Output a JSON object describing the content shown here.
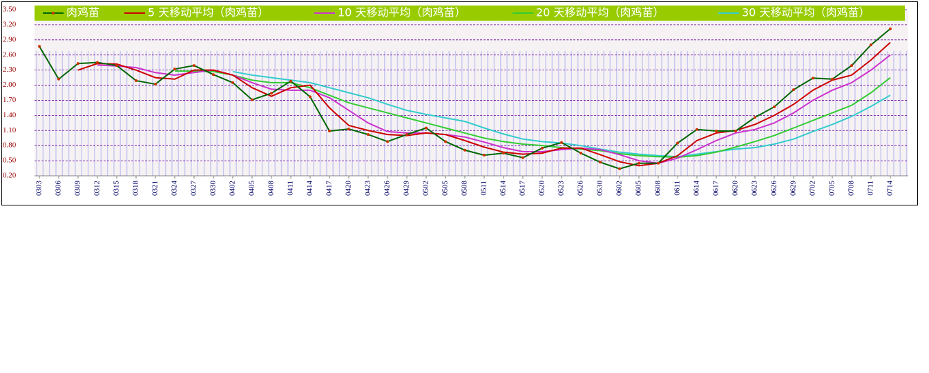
{
  "chart_data": {
    "type": "line",
    "categories": [
      "0303",
      "0306",
      "0309",
      "0312",
      "0315",
      "0318",
      "0321",
      "0324",
      "0327",
      "0330",
      "0402",
      "0405",
      "0408",
      "0411",
      "0414",
      "0417",
      "0420",
      "0423",
      "0426",
      "0429",
      "0502",
      "0505",
      "0508",
      "0511",
      "0514",
      "0517",
      "0520",
      "0523",
      "0526",
      "0530",
      "0602",
      "0605",
      "0608",
      "0611",
      "0614",
      "0617",
      "0620",
      "0623",
      "0626",
      "0629",
      "0702",
      "0705",
      "0708",
      "0711",
      "0714"
    ],
    "series": [
      {
        "name": "肉鸡苗",
        "color": "#006600",
        "marker_color": "#cc3300",
        "values": [
          2.77,
          2.12,
          2.43,
          2.45,
          2.39,
          2.09,
          2.02,
          2.32,
          2.39,
          2.21,
          2.05,
          1.71,
          1.84,
          2.08,
          1.77,
          1.09,
          1.13,
          1.02,
          0.88,
          1.02,
          1.15,
          0.88,
          0.71,
          0.61,
          0.65,
          0.56,
          0.75,
          0.86,
          0.65,
          0.47,
          0.34,
          0.45,
          0.45,
          0.85,
          1.12,
          1.09,
          1.09,
          1.36,
          1.57,
          1.91,
          2.14,
          2.12,
          2.39,
          2.8,
          3.12
        ]
      },
      {
        "name": "5 天移动平均（肉鸡苗）",
        "color": "#cc0000",
        "values": [
          null,
          null,
          2.3,
          2.43,
          2.42,
          2.3,
          2.15,
          2.12,
          2.3,
          2.3,
          2.2,
          1.95,
          1.78,
          1.95,
          2.0,
          1.55,
          1.2,
          1.1,
          1.02,
          1.0,
          1.05,
          1.02,
          0.9,
          0.77,
          0.67,
          0.63,
          0.65,
          0.75,
          0.75,
          0.62,
          0.48,
          0.4,
          0.45,
          0.6,
          0.9,
          1.05,
          1.1,
          1.22,
          1.4,
          1.62,
          1.9,
          2.1,
          2.2,
          2.5,
          2.85
        ]
      },
      {
        "name": "10 天移动平均（肉鸡苗）",
        "color": "#cc33cc",
        "values": [
          null,
          null,
          null,
          2.4,
          2.38,
          2.35,
          2.25,
          2.2,
          2.25,
          2.3,
          2.2,
          2.05,
          1.92,
          1.9,
          1.9,
          1.75,
          1.5,
          1.25,
          1.08,
          1.05,
          1.05,
          1.02,
          0.97,
          0.87,
          0.76,
          0.68,
          0.68,
          0.72,
          0.75,
          0.72,
          0.62,
          0.5,
          0.45,
          0.55,
          0.72,
          0.9,
          1.05,
          1.12,
          1.25,
          1.45,
          1.7,
          1.9,
          2.05,
          2.3,
          2.6
        ]
      },
      {
        "name": "20 天移动平均（肉鸡苗）",
        "color": "#33cc33",
        "values": [
          null,
          null,
          null,
          null,
          null,
          null,
          null,
          2.28,
          2.28,
          2.27,
          2.2,
          2.1,
          2.05,
          2.05,
          1.95,
          1.8,
          1.65,
          1.55,
          1.45,
          1.35,
          1.25,
          1.15,
          1.05,
          0.95,
          0.88,
          0.83,
          0.8,
          0.76,
          0.73,
          0.7,
          0.64,
          0.6,
          0.58,
          0.57,
          0.6,
          0.67,
          0.77,
          0.88,
          1.0,
          1.15,
          1.3,
          1.45,
          1.6,
          1.85,
          2.15
        ]
      },
      {
        "name": "30 天移动平均（肉鸡苗）",
        "color": "#33cccc",
        "values": [
          null,
          null,
          null,
          null,
          null,
          null,
          null,
          null,
          null,
          null,
          2.27,
          2.2,
          2.15,
          2.1,
          2.05,
          1.95,
          1.85,
          1.75,
          1.62,
          1.5,
          1.42,
          1.35,
          1.28,
          1.15,
          1.03,
          0.93,
          0.88,
          0.85,
          0.8,
          0.73,
          0.67,
          0.63,
          0.6,
          0.58,
          0.63,
          0.68,
          0.73,
          0.76,
          0.83,
          0.93,
          1.08,
          1.22,
          1.38,
          1.58,
          1.8
        ]
      }
    ],
    "ylim": [
      0.2,
      3.5
    ],
    "yticks": [
      {
        "value": 0.2,
        "label": "0.20"
      },
      {
        "value": 0.5,
        "label": "0.50"
      },
      {
        "value": 0.8,
        "label": "0.80"
      },
      {
        "value": 1.1,
        "label": "1.10"
      },
      {
        "value": 1.4,
        "label": "1.40"
      },
      {
        "value": 1.7,
        "label": "1.70"
      },
      {
        "value": 2.0,
        "label": "2.00"
      },
      {
        "value": 2.3,
        "label": "2.30"
      },
      {
        "value": 2.6,
        "label": "2.60"
      },
      {
        "value": 2.9,
        "label": "2.90"
      },
      {
        "value": 3.2,
        "label": "3.20"
      },
      {
        "value": 3.5,
        "label": "3.50"
      }
    ],
    "grid": true,
    "legend": "top",
    "legend_color": "#99cc00"
  }
}
